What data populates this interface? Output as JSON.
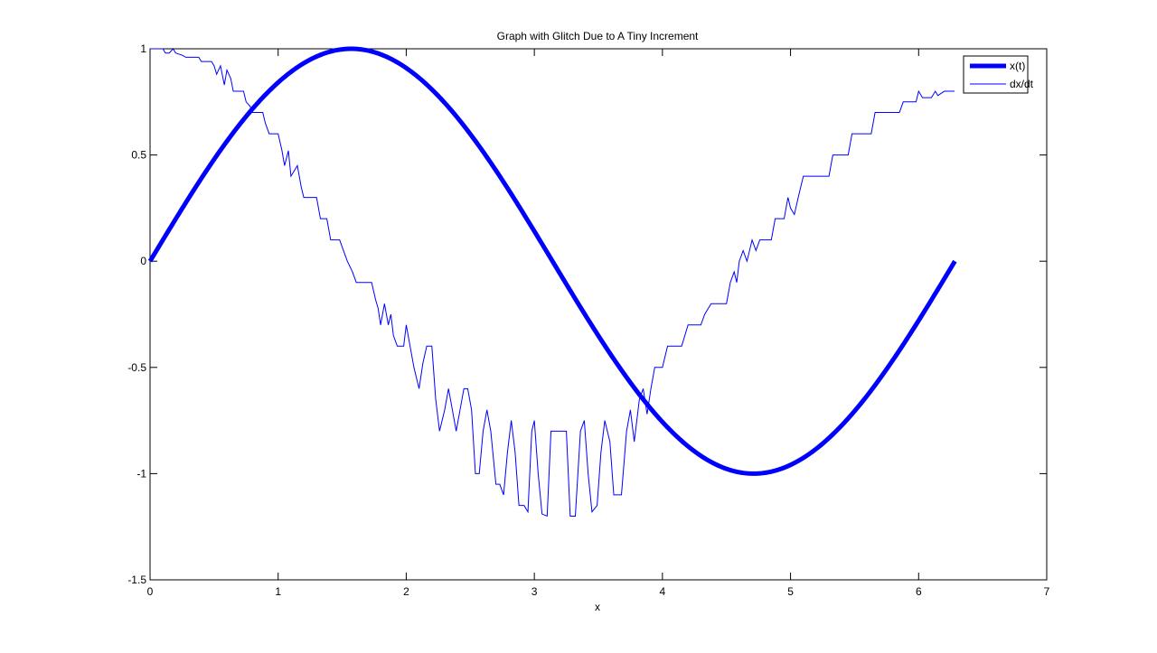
{
  "chart_data": {
    "type": "line",
    "title": "Graph with Glitch Due to A Tiny Increment",
    "xlabel": "x",
    "ylabel": "",
    "xlim": [
      0,
      7
    ],
    "ylim": [
      -1.5,
      1
    ],
    "xticks": [
      "0",
      "1",
      "2",
      "3",
      "4",
      "5",
      "6",
      "7"
    ],
    "yticks": [
      "-1.5",
      "-1",
      "-0.5",
      "0",
      "0.5",
      "1"
    ],
    "grid": false,
    "legend": "top-right",
    "colors": {
      "series": "#0000ff",
      "axes": "#000000",
      "background": "#ffffff"
    },
    "series": [
      {
        "name": "x(t)",
        "line_style": "thick",
        "function": "sin",
        "x_range": [
          0,
          6.2832
        ]
      },
      {
        "name": "dx/dt",
        "line_style": "thin",
        "points": [
          [
            0.0,
            1.0
          ],
          [
            0.1,
            1.0
          ],
          [
            0.12,
            0.98
          ],
          [
            0.15,
            0.98
          ],
          [
            0.18,
            1.0
          ],
          [
            0.2,
            0.98
          ],
          [
            0.25,
            0.97
          ],
          [
            0.28,
            0.96
          ],
          [
            0.38,
            0.96
          ],
          [
            0.4,
            0.94
          ],
          [
            0.48,
            0.94
          ],
          [
            0.5,
            0.92
          ],
          [
            0.52,
            0.88
          ],
          [
            0.55,
            0.92
          ],
          [
            0.58,
            0.83
          ],
          [
            0.6,
            0.9
          ],
          [
            0.63,
            0.86
          ],
          [
            0.65,
            0.8
          ],
          [
            0.73,
            0.8
          ],
          [
            0.75,
            0.75
          ],
          [
            0.78,
            0.73
          ],
          [
            0.8,
            0.7
          ],
          [
            0.88,
            0.7
          ],
          [
            0.9,
            0.65
          ],
          [
            0.93,
            0.6
          ],
          [
            1.0,
            0.6
          ],
          [
            1.03,
            0.52
          ],
          [
            1.05,
            0.45
          ],
          [
            1.08,
            0.52
          ],
          [
            1.1,
            0.4
          ],
          [
            1.15,
            0.45
          ],
          [
            1.18,
            0.35
          ],
          [
            1.2,
            0.3
          ],
          [
            1.3,
            0.3
          ],
          [
            1.33,
            0.2
          ],
          [
            1.38,
            0.2
          ],
          [
            1.41,
            0.1
          ],
          [
            1.48,
            0.1
          ],
          [
            1.51,
            0.05
          ],
          [
            1.54,
            0.0
          ],
          [
            1.58,
            -0.05
          ],
          [
            1.61,
            -0.1
          ],
          [
            1.73,
            -0.1
          ],
          [
            1.76,
            -0.18
          ],
          [
            1.78,
            -0.22
          ],
          [
            1.8,
            -0.3
          ],
          [
            1.83,
            -0.2
          ],
          [
            1.86,
            -0.3
          ],
          [
            1.88,
            -0.25
          ],
          [
            1.9,
            -0.35
          ],
          [
            1.93,
            -0.4
          ],
          [
            1.98,
            -0.4
          ],
          [
            2.0,
            -0.3
          ],
          [
            2.03,
            -0.4
          ],
          [
            2.06,
            -0.5
          ],
          [
            2.1,
            -0.6
          ],
          [
            2.13,
            -0.48
          ],
          [
            2.16,
            -0.4
          ],
          [
            2.2,
            -0.4
          ],
          [
            2.23,
            -0.65
          ],
          [
            2.26,
            -0.8
          ],
          [
            2.3,
            -0.7
          ],
          [
            2.33,
            -0.6
          ],
          [
            2.36,
            -0.7
          ],
          [
            2.39,
            -0.8
          ],
          [
            2.42,
            -0.7
          ],
          [
            2.45,
            -0.6
          ],
          [
            2.48,
            -0.6
          ],
          [
            2.51,
            -0.7
          ],
          [
            2.54,
            -1.0
          ],
          [
            2.57,
            -1.0
          ],
          [
            2.6,
            -0.8
          ],
          [
            2.63,
            -0.7
          ],
          [
            2.66,
            -0.8
          ],
          [
            2.7,
            -1.05
          ],
          [
            2.73,
            -1.05
          ],
          [
            2.76,
            -1.1
          ],
          [
            2.79,
            -0.9
          ],
          [
            2.82,
            -0.75
          ],
          [
            2.85,
            -0.9
          ],
          [
            2.88,
            -1.15
          ],
          [
            2.92,
            -1.15
          ],
          [
            2.95,
            -1.18
          ],
          [
            2.98,
            -0.8
          ],
          [
            3.0,
            -0.75
          ],
          [
            3.03,
            -1.0
          ],
          [
            3.06,
            -1.19
          ],
          [
            3.1,
            -1.2
          ],
          [
            3.13,
            -0.8
          ],
          [
            3.25,
            -0.8
          ],
          [
            3.28,
            -1.2
          ],
          [
            3.32,
            -1.2
          ],
          [
            3.36,
            -0.8
          ],
          [
            3.39,
            -0.75
          ],
          [
            3.42,
            -1.0
          ],
          [
            3.45,
            -1.18
          ],
          [
            3.49,
            -1.15
          ],
          [
            3.52,
            -0.9
          ],
          [
            3.55,
            -0.75
          ],
          [
            3.59,
            -0.85
          ],
          [
            3.62,
            -1.1
          ],
          [
            3.68,
            -1.1
          ],
          [
            3.72,
            -0.8
          ],
          [
            3.75,
            -0.7
          ],
          [
            3.78,
            -0.85
          ],
          [
            3.82,
            -0.65
          ],
          [
            3.85,
            -0.6
          ],
          [
            3.88,
            -0.72
          ],
          [
            3.91,
            -0.6
          ],
          [
            3.94,
            -0.5
          ],
          [
            4.0,
            -0.5
          ],
          [
            4.04,
            -0.4
          ],
          [
            4.15,
            -0.4
          ],
          [
            4.2,
            -0.3
          ],
          [
            4.3,
            -0.3
          ],
          [
            4.33,
            -0.25
          ],
          [
            4.38,
            -0.2
          ],
          [
            4.5,
            -0.2
          ],
          [
            4.53,
            -0.1
          ],
          [
            4.56,
            -0.05
          ],
          [
            4.58,
            -0.1
          ],
          [
            4.6,
            0.0
          ],
          [
            4.63,
            0.05
          ],
          [
            4.66,
            0.0
          ],
          [
            4.7,
            0.1
          ],
          [
            4.73,
            0.05
          ],
          [
            4.76,
            0.1
          ],
          [
            4.85,
            0.1
          ],
          [
            4.88,
            0.2
          ],
          [
            4.95,
            0.2
          ],
          [
            4.98,
            0.3
          ],
          [
            5.0,
            0.25
          ],
          [
            5.03,
            0.22
          ],
          [
            5.06,
            0.3
          ],
          [
            5.1,
            0.4
          ],
          [
            5.3,
            0.4
          ],
          [
            5.33,
            0.5
          ],
          [
            5.45,
            0.5
          ],
          [
            5.48,
            0.6
          ],
          [
            5.63,
            0.6
          ],
          [
            5.66,
            0.7
          ],
          [
            5.85,
            0.7
          ],
          [
            5.88,
            0.75
          ],
          [
            5.98,
            0.75
          ],
          [
            6.0,
            0.8
          ],
          [
            6.03,
            0.77
          ],
          [
            6.1,
            0.77
          ],
          [
            6.13,
            0.8
          ],
          [
            6.15,
            0.78
          ],
          [
            6.2,
            0.8
          ],
          [
            6.28,
            0.8
          ]
        ]
      }
    ]
  }
}
